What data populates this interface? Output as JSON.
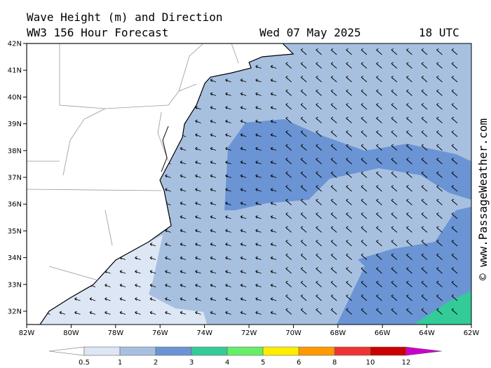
{
  "header": {
    "title": "Wave Height (m) and Direction",
    "model": "WW3 156 Hour Forecast",
    "date": "Wed 07 May 2025",
    "time": "18 UTC"
  },
  "map": {
    "lat_labels": [
      "42N",
      "41N",
      "40N",
      "39N",
      "38N",
      "37N",
      "36N",
      "35N",
      "34N",
      "33N",
      "32N"
    ],
    "lon_labels": [
      "82W",
      "80W",
      "78W",
      "76W",
      "74W",
      "72W",
      "70W",
      "68W",
      "66W",
      "64W",
      "62W"
    ]
  },
  "colorbar": {
    "labels": [
      "0.5",
      "1",
      "2",
      "3",
      "4",
      "5",
      "6",
      "8",
      "10",
      "12"
    ],
    "colors": [
      "#ffffff",
      "#dde6f4",
      "#a8c0e0",
      "#6a94d4",
      "#33cc99",
      "#66ee66",
      "#ffee00",
      "#ff9900",
      "#ee3333",
      "#cc0000",
      "#cc00cc"
    ]
  },
  "watermark": "© www.PassageWeather.com"
}
